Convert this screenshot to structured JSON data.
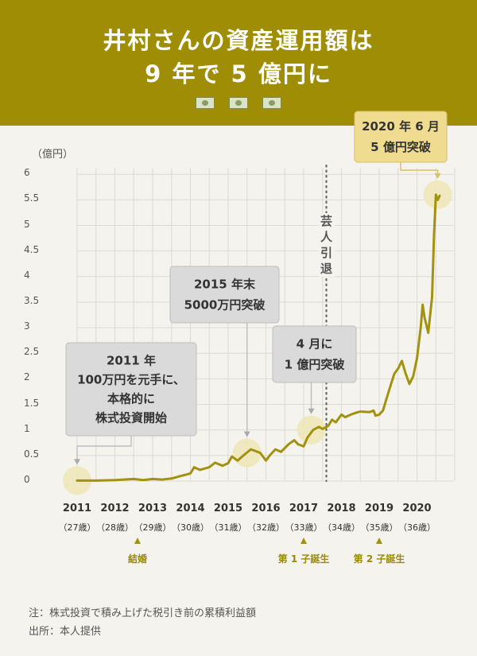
{
  "header": {
    "title_line1": "井村さんの資産運用額は",
    "title_line2": "9 年で 5 億円に",
    "icons": [
      "money-bill-icon",
      "money-bill-icon",
      "money-bill-icon"
    ]
  },
  "chart_data": {
    "type": "line",
    "yunit": "（億円）",
    "ylim": [
      0,
      6
    ],
    "yticks": [
      "0",
      "0.5",
      "1",
      "1.5",
      "2",
      "2.5",
      "3",
      "3.5",
      "4",
      "4.5",
      "5",
      "5.5",
      "6"
    ],
    "xlim": [
      2011,
      2021
    ],
    "grid": true,
    "colors": {
      "line": "#a39210",
      "grid": "#dcdad2",
      "callout_gray": "#dadada",
      "callout_gold": "#f0dc90",
      "highlight": "#f0e7b8"
    },
    "x_labels": [
      {
        "year": "2011",
        "age": "（27歳）"
      },
      {
        "year": "2012",
        "age": "（28歳）"
      },
      {
        "year": "2013",
        "age": "（29歳）"
      },
      {
        "year": "2014",
        "age": "（30歳）"
      },
      {
        "year": "2015",
        "age": "（31歳）"
      },
      {
        "year": "2016",
        "age": "（32歳）"
      },
      {
        "year": "2017",
        "age": "（33歳）"
      },
      {
        "year": "2018",
        "age": "（34歳）"
      },
      {
        "year": "2019",
        "age": "（35歳）"
      },
      {
        "year": "2020",
        "age": "（36歳）"
      }
    ],
    "series": [
      {
        "points": [
          [
            2011.0,
            0.01
          ],
          [
            2011.5,
            0.01
          ],
          [
            2012.0,
            0.02
          ],
          [
            2012.5,
            0.04
          ],
          [
            2012.75,
            0.02
          ],
          [
            2013.0,
            0.04
          ],
          [
            2013.25,
            0.03
          ],
          [
            2013.5,
            0.05
          ],
          [
            2013.75,
            0.1
          ],
          [
            2014.0,
            0.15
          ],
          [
            2014.1,
            0.27
          ],
          [
            2014.25,
            0.22
          ],
          [
            2014.5,
            0.27
          ],
          [
            2014.65,
            0.36
          ],
          [
            2014.85,
            0.3
          ],
          [
            2015.0,
            0.35
          ],
          [
            2015.1,
            0.48
          ],
          [
            2015.25,
            0.4
          ],
          [
            2015.4,
            0.5
          ],
          [
            2015.5,
            0.56
          ],
          [
            2015.6,
            0.62
          ],
          [
            2015.75,
            0.58
          ],
          [
            2015.85,
            0.55
          ],
          [
            2016.0,
            0.4
          ],
          [
            2016.1,
            0.5
          ],
          [
            2016.25,
            0.62
          ],
          [
            2016.4,
            0.57
          ],
          [
            2016.6,
            0.72
          ],
          [
            2016.75,
            0.8
          ],
          [
            2016.85,
            0.72
          ],
          [
            2017.0,
            0.68
          ],
          [
            2017.1,
            0.85
          ],
          [
            2017.25,
            1.0
          ],
          [
            2017.4,
            1.06
          ],
          [
            2017.5,
            1.02
          ],
          [
            2017.65,
            1.08
          ],
          [
            2017.75,
            1.2
          ],
          [
            2017.85,
            1.15
          ],
          [
            2018.0,
            1.3
          ],
          [
            2018.1,
            1.25
          ],
          [
            2018.25,
            1.3
          ],
          [
            2018.4,
            1.34
          ],
          [
            2018.5,
            1.36
          ],
          [
            2018.75,
            1.35
          ],
          [
            2018.85,
            1.38
          ],
          [
            2018.9,
            1.28
          ],
          [
            2019.0,
            1.3
          ],
          [
            2019.1,
            1.38
          ],
          [
            2019.25,
            1.75
          ],
          [
            2019.4,
            2.1
          ],
          [
            2019.5,
            2.2
          ],
          [
            2019.6,
            2.35
          ],
          [
            2019.7,
            2.1
          ],
          [
            2019.8,
            1.9
          ],
          [
            2019.9,
            2.05
          ],
          [
            2020.0,
            2.4
          ],
          [
            2020.1,
            3.0
          ],
          [
            2020.15,
            3.45
          ],
          [
            2020.2,
            3.2
          ],
          [
            2020.3,
            2.9
          ],
          [
            2020.4,
            3.6
          ],
          [
            2020.45,
            4.8
          ],
          [
            2020.5,
            5.6
          ],
          [
            2020.55,
            5.5
          ],
          [
            2020.6,
            5.58
          ]
        ]
      }
    ],
    "annotations": [
      {
        "id": "start",
        "text": [
          "2011 年",
          "100万円を元手に、",
          "本格的に",
          "株式投資開始"
        ],
        "x": 2011.0,
        "y": 0.01,
        "style": "gray"
      },
      {
        "id": "y2015",
        "text": [
          "2015 年末",
          "5000万円突破"
        ],
        "x": 2015.5,
        "y": 0.55,
        "style": "gray"
      },
      {
        "id": "apr",
        "text": [
          "4 月に",
          "1 億円突破"
        ],
        "x": 2017.2,
        "y": 1.0,
        "style": "gray"
      },
      {
        "id": "y2020",
        "text": [
          "2020 年 6 月",
          "5 億円突破"
        ],
        "x": 2020.55,
        "y": 5.6,
        "style": "gold"
      }
    ],
    "vertical_marker": {
      "x": 2017.6,
      "label": "芸人引退"
    },
    "events": [
      {
        "label": "結婚",
        "x": 2012.6
      },
      {
        "label": "第 1 子誕生",
        "x": 2017.0
      },
      {
        "label": "第 2 子誕生",
        "x": 2019.0
      }
    ]
  },
  "footer": {
    "note": "注：株式投資で積み上げた税引き前の累積利益額",
    "source": "出所：本人提供"
  }
}
